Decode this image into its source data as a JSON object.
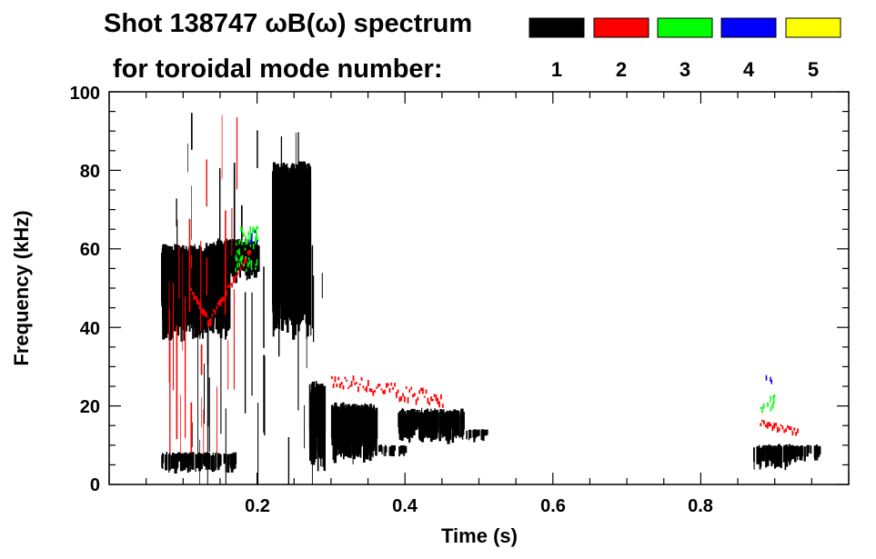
{
  "chart_data": {
    "type": "spectrogram",
    "title": "Shot 138747 ωB(ω) spectrum",
    "legend_label": "for toroidal mode number:",
    "xlabel": "Time (s)",
    "ylabel": "Frequency (kHz)",
    "xlim": [
      0.0,
      1.0
    ],
    "ylim": [
      0,
      100
    ],
    "xticks": [
      0.2,
      0.4,
      0.6,
      0.8
    ],
    "xtick_labels": [
      "0.2",
      "0.4",
      "0.6",
      "0.8"
    ],
    "yticks": [
      0,
      20,
      40,
      60,
      80,
      100
    ],
    "ytick_labels": [
      "0",
      "20",
      "40",
      "60",
      "80",
      "100"
    ],
    "legend": [
      {
        "mode": "1",
        "color": "#000000"
      },
      {
        "mode": "2",
        "color": "#ff0000"
      },
      {
        "mode": "3",
        "color": "#00ff00"
      },
      {
        "mode": "4",
        "color": "#0000ff"
      },
      {
        "mode": "5",
        "color": "#ffff00"
      }
    ],
    "features": [
      {
        "mode": 1,
        "kind": "blob",
        "t": [
          0.07,
          0.16
        ],
        "f": [
          38,
          60
        ]
      },
      {
        "mode": 1,
        "kind": "blob",
        "t": [
          0.14,
          0.2
        ],
        "f": [
          52,
          62
        ]
      },
      {
        "mode": 1,
        "kind": "blob",
        "t": [
          0.07,
          0.17
        ],
        "f": [
          3,
          8
        ]
      },
      {
        "mode": 1,
        "kind": "blob",
        "t": [
          0.22,
          0.27
        ],
        "f": [
          40,
          80
        ]
      },
      {
        "mode": 1,
        "kind": "spikes",
        "t": [
          0.09,
          0.29
        ],
        "f": [
          0,
          95
        ]
      },
      {
        "mode": 1,
        "kind": "blob",
        "t": [
          0.27,
          0.29
        ],
        "f": [
          5,
          25
        ]
      },
      {
        "mode": 1,
        "kind": "blob",
        "t": [
          0.3,
          0.36
        ],
        "f": [
          6,
          20
        ]
      },
      {
        "mode": 1,
        "kind": "blob",
        "t": [
          0.36,
          0.4
        ],
        "f": [
          7,
          10
        ]
      },
      {
        "mode": 1,
        "kind": "blob",
        "t": [
          0.39,
          0.48
        ],
        "f": [
          11,
          19
        ]
      },
      {
        "mode": 1,
        "kind": "blob",
        "t": [
          0.48,
          0.51
        ],
        "f": [
          11,
          14
        ]
      },
      {
        "mode": 1,
        "kind": "blob",
        "t": [
          0.87,
          0.92
        ],
        "f": [
          4,
          10
        ]
      },
      {
        "mode": 1,
        "kind": "blob",
        "t": [
          0.92,
          0.96
        ],
        "f": [
          6,
          10
        ]
      },
      {
        "mode": 2,
        "kind": "chirp",
        "t": [
          0.11,
          0.19
        ],
        "f": [
          42,
          60
        ]
      },
      {
        "mode": 2,
        "kind": "band",
        "t": [
          0.3,
          0.45
        ],
        "f": [
          20,
          27
        ]
      },
      {
        "mode": 2,
        "kind": "band",
        "t": [
          0.88,
          0.93
        ],
        "f": [
          13,
          16
        ]
      },
      {
        "mode": 2,
        "kind": "spikes",
        "t": [
          0.08,
          0.18
        ],
        "f": [
          8,
          95
        ]
      },
      {
        "mode": 3,
        "kind": "dots",
        "t": [
          0.17,
          0.2
        ],
        "f": [
          55,
          66
        ]
      },
      {
        "mode": 3,
        "kind": "dots",
        "t": [
          0.88,
          0.9
        ],
        "f": [
          19,
          23
        ]
      },
      {
        "mode": 4,
        "kind": "dots",
        "t": [
          0.19,
          0.2
        ],
        "f": [
          62,
          65
        ]
      },
      {
        "mode": 4,
        "kind": "dots",
        "t": [
          0.885,
          0.895
        ],
        "f": [
          26,
          28
        ]
      }
    ]
  }
}
